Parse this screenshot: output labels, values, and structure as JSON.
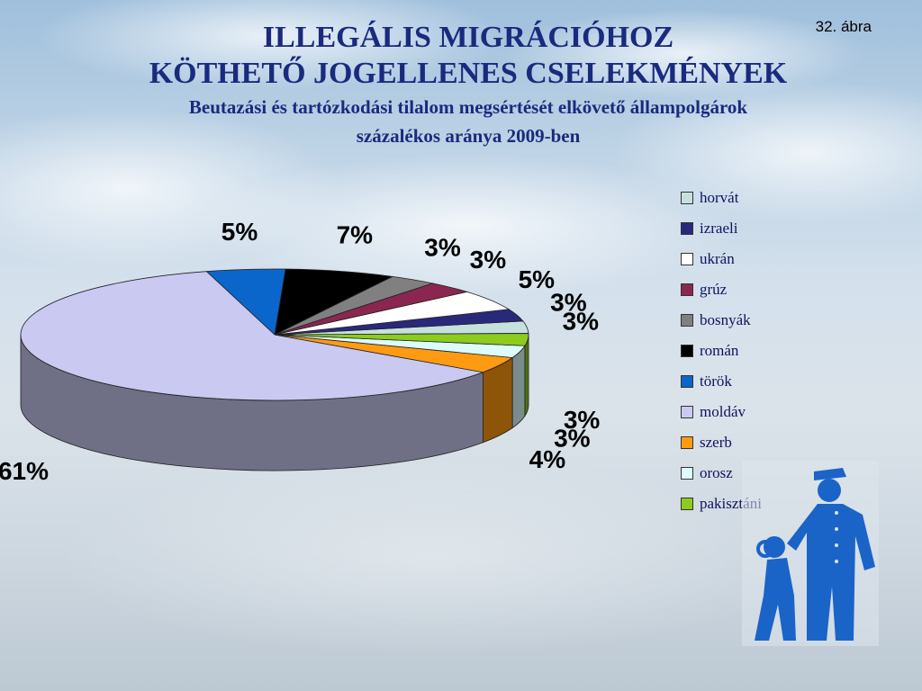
{
  "slide_number": "32. ábra",
  "title_line1": "ILLEGÁLIS MIGRÁCIÓHOZ",
  "title_line2": "KÖTHETŐ JOGELLENES CSELEKMÉNYEK",
  "subtitle_line1": "Beutazási és tartózkodási tilalom megsértését elkövető állampolgárok",
  "subtitle_line2": "százalékos aránya 2009-ben",
  "colors": {
    "title": "#1a2a7e",
    "legend_text": "#10135e"
  },
  "chart_data": {
    "type": "pie",
    "style": "3d",
    "legend_placement": "right",
    "slices": [
      {
        "name": "horvát",
        "value": 3,
        "label": "3%",
        "color": "#c6e0e0"
      },
      {
        "name": "izraeli",
        "value": 3,
        "label": "3%",
        "color": "#29297c"
      },
      {
        "name": "ukrán",
        "value": 5,
        "label": "5%",
        "color": "#ffffff"
      },
      {
        "name": "grúz",
        "value": 3,
        "label": "3%",
        "color": "#8a2650"
      },
      {
        "name": "bosnyák",
        "value": 3,
        "label": "3%",
        "color": "#808080"
      },
      {
        "name": "román",
        "value": 7,
        "label": "7%",
        "color": "#000000"
      },
      {
        "name": "török",
        "value": 5,
        "label": "5%",
        "color": "#0b66cc"
      },
      {
        "name": "moldáv",
        "value": 61,
        "label": "61%",
        "color": "#c9c9f2"
      },
      {
        "name": "szerb",
        "value": 4,
        "label": "4%",
        "color": "#ff9b13"
      },
      {
        "name": "orosz",
        "value": 3,
        "label": "3%",
        "color": "#dcfcfc"
      },
      {
        "name": "pakisztáni",
        "value": 3,
        "label": "3%",
        "color": "#8ccc1c"
      }
    ]
  }
}
